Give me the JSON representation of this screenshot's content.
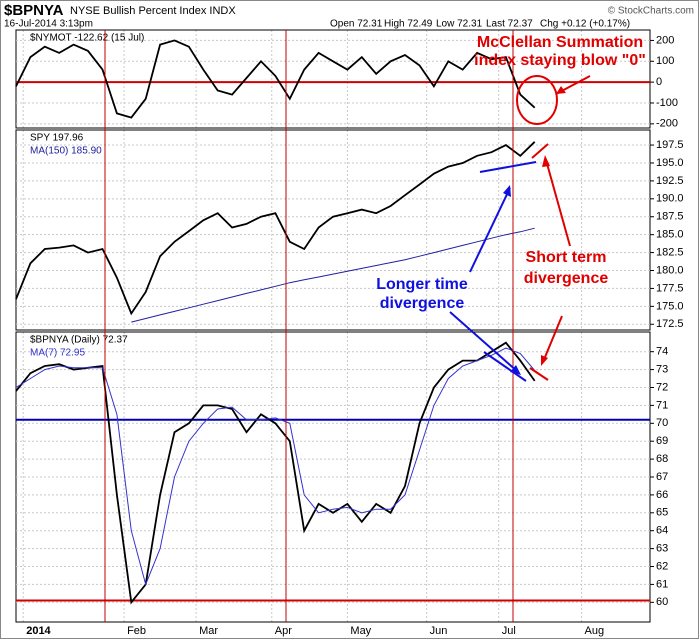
{
  "header": {
    "symbol": "$BPNYA",
    "name": "NYSE Bullish Percent Index INDX",
    "date": "16-Jul-2014 3:13pm",
    "quote": [
      "Open 72.31",
      "High 72.49",
      "Low 72.31",
      "Last 72.37",
      "Chg +0.12 (+0.17%)"
    ],
    "copyright": "© StockCharts.com"
  },
  "chart_data": [
    {
      "type": "line",
      "x": [
        0,
        4,
        8,
        12,
        16,
        20,
        24,
        28,
        32,
        36,
        40,
        44,
        48,
        52,
        56,
        60,
        64,
        68,
        72,
        76,
        80,
        84,
        88,
        92,
        96,
        100,
        104,
        108,
        112,
        116,
        120,
        124,
        128,
        132,
        136,
        140,
        144
      ],
      "xlim": [
        0,
        176
      ],
      "ylim": [
        -220,
        250
      ],
      "yticks": [
        200,
        100,
        0,
        -100,
        -200
      ],
      "grid": true,
      "hlines": [
        {
          "value": 0,
          "color": "#d00000"
        }
      ],
      "series": [
        {
          "name": "$NYMOT -122.62 (15 Jul)",
          "color": "#000000",
          "values": [
            -20,
            120,
            170,
            140,
            180,
            150,
            60,
            -150,
            -170,
            -80,
            180,
            200,
            170,
            60,
            -40,
            -60,
            20,
            100,
            30,
            -80,
            60,
            140,
            100,
            60,
            120,
            40,
            100,
            130,
            80,
            -20,
            100,
            60,
            140,
            110,
            120,
            -60,
            -122.62
          ]
        }
      ],
      "annotation": [
        "McClellan Summation",
        "index staying blow \"0\""
      ]
    },
    {
      "type": "line",
      "x": [
        0,
        4,
        8,
        12,
        16,
        20,
        24,
        28,
        32,
        36,
        40,
        44,
        48,
        52,
        56,
        60,
        64,
        68,
        72,
        76,
        80,
        84,
        88,
        92,
        96,
        100,
        104,
        108,
        112,
        116,
        120,
        124,
        128,
        132,
        136,
        140,
        144
      ],
      "xlim": [
        0,
        176
      ],
      "ylim": [
        171.7,
        199.6
      ],
      "yticks": [
        197.5,
        195.0,
        192.5,
        190.0,
        187.5,
        185.0,
        182.5,
        180.0,
        177.5,
        175.0,
        172.5
      ],
      "yticklabels": [
        "197.5",
        "195.0",
        "192.5",
        "190.0",
        "187.5",
        "185.0",
        "182.5",
        "180.0",
        "177.5",
        "175.0",
        "172.5"
      ],
      "grid": true,
      "series": [
        {
          "name": "SPY 197.96",
          "color": "#000000",
          "values": [
            176,
            181,
            183,
            183.2,
            183.5,
            182.5,
            183,
            179,
            174,
            177,
            182,
            184,
            185.5,
            187,
            188,
            186,
            186.5,
            187.5,
            188,
            184,
            183,
            186,
            187.5,
            188,
            188.5,
            188,
            189,
            190.5,
            192,
            193.5,
            194.5,
            195,
            196,
            196.5,
            197.5,
            196,
            197.96
          ]
        },
        {
          "name": "MA(150) 185.90",
          "color": "#2020a0",
          "values": [
            null,
            null,
            null,
            null,
            null,
            null,
            null,
            null,
            172.8,
            173.3,
            173.8,
            174.3,
            174.8,
            175.3,
            175.8,
            176.3,
            176.8,
            177.3,
            177.8,
            178.3,
            178.7,
            179.1,
            179.5,
            179.9,
            180.3,
            180.7,
            181.1,
            181.5,
            182.0,
            182.5,
            183.0,
            183.5,
            184.0,
            184.5,
            185.0,
            185.4,
            185.9
          ]
        }
      ],
      "annotations": [
        [
          "Longer time",
          "divergence"
        ],
        [
          "Short term",
          "divergence"
        ]
      ]
    },
    {
      "type": "line",
      "x": [
        0,
        4,
        8,
        12,
        16,
        20,
        24,
        28,
        32,
        36,
        40,
        44,
        48,
        52,
        56,
        60,
        64,
        68,
        72,
        76,
        80,
        84,
        88,
        92,
        96,
        100,
        104,
        108,
        112,
        116,
        120,
        124,
        128,
        132,
        136,
        140,
        144
      ],
      "xlim": [
        0,
        176
      ],
      "xticks": [
        {
          "value": 2,
          "label": "2014"
        },
        {
          "value": 30,
          "label": "Feb"
        },
        {
          "value": 50,
          "label": "Mar"
        },
        {
          "value": 71,
          "label": "Apr"
        },
        {
          "value": 92,
          "label": "May"
        },
        {
          "value": 114,
          "label": "Jun"
        },
        {
          "value": 134,
          "label": "Jul"
        },
        {
          "value": 157,
          "label": "Aug"
        }
      ],
      "ylim": [
        58.9,
        75.1
      ],
      "yticks": [
        74,
        73,
        72,
        71,
        70,
        69,
        68,
        67,
        66,
        65,
        64,
        63,
        62,
        61,
        60
      ],
      "grid": true,
      "hlines": [
        {
          "value": 70.2,
          "color": "#0000b0"
        },
        {
          "value": 60.1,
          "color": "#d00000"
        }
      ],
      "series": [
        {
          "name": "$BPNYA (Daily) 72.37",
          "color": "#000000",
          "values": [
            71.8,
            72.8,
            73.2,
            73.3,
            73.0,
            73.1,
            73.2,
            66,
            60,
            61,
            66,
            69.5,
            70,
            71,
            71,
            70.8,
            69.5,
            70.5,
            70,
            69,
            64,
            65.5,
            65,
            65.5,
            64.5,
            65.5,
            65,
            66.5,
            70,
            72,
            73,
            73.5,
            73.5,
            74,
            74.5,
            73.5,
            72.37
          ]
        },
        {
          "name": "MA(7) 72.95",
          "color": "#3333cc",
          "values": [
            72.0,
            72.5,
            73.0,
            73.2,
            73.1,
            73.1,
            73.1,
            70.5,
            64,
            61,
            63,
            67,
            69,
            70,
            70.8,
            70.9,
            70.2,
            70.2,
            70.3,
            70,
            66,
            65,
            65.2,
            65.3,
            65,
            65.2,
            65.2,
            66,
            68.5,
            71,
            72.5,
            73.2,
            73.5,
            73.8,
            74.2,
            73.9,
            72.95
          ]
        }
      ]
    }
  ]
}
